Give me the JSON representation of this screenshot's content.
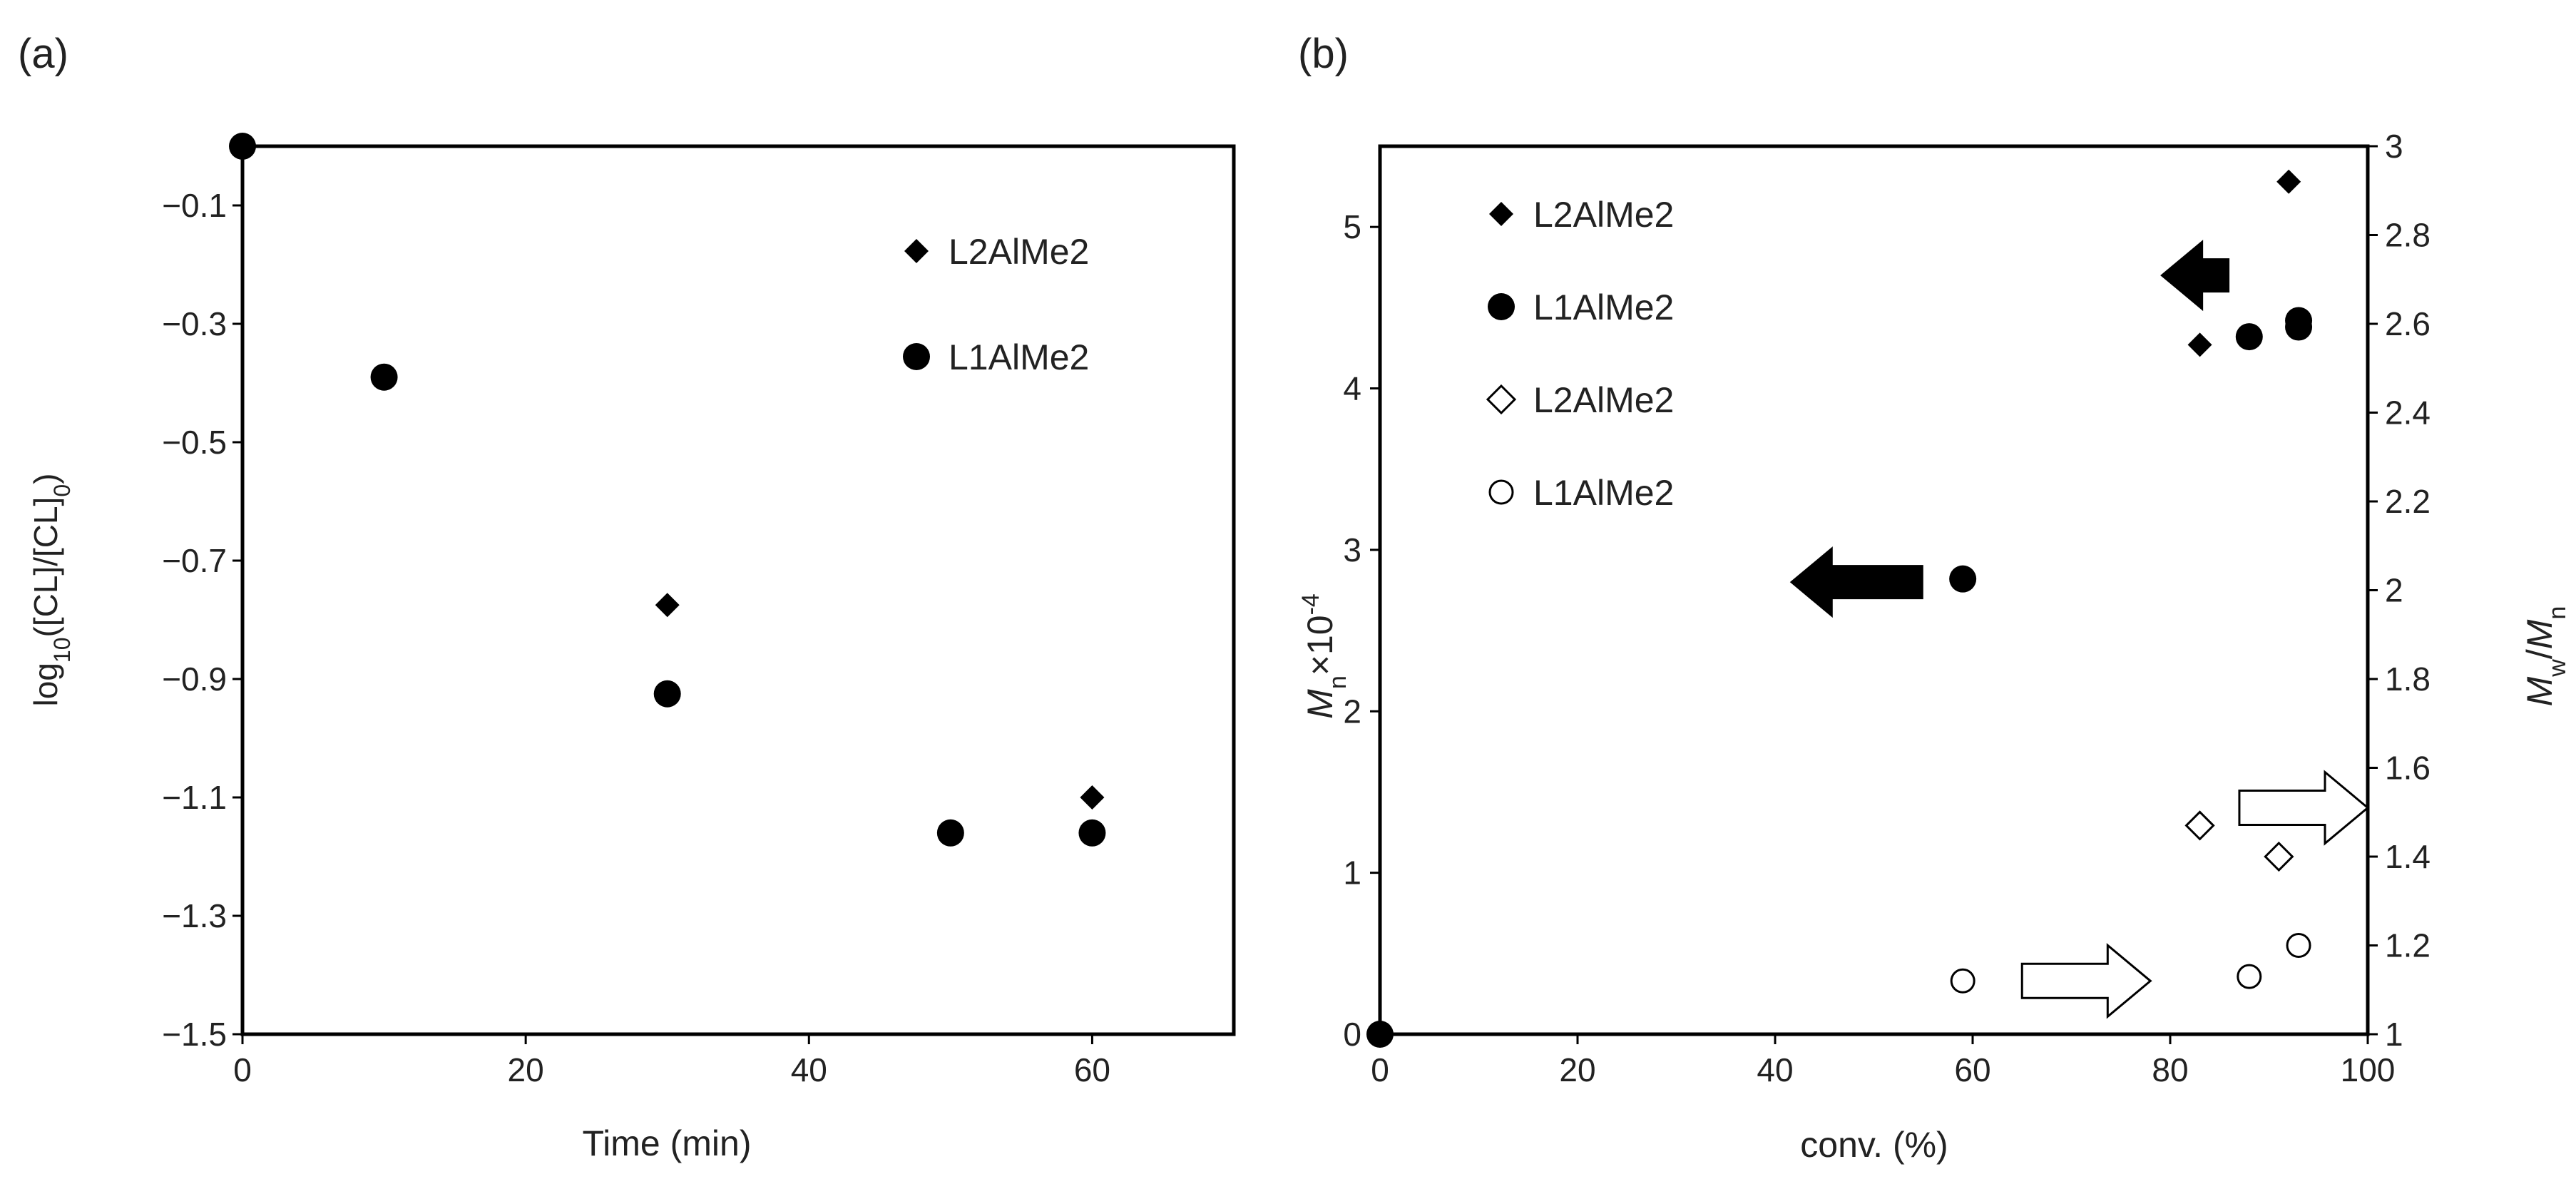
{
  "panels": {
    "a": {
      "label": "(a)"
    },
    "b": {
      "label": "(b)"
    }
  },
  "chart_data": [
    {
      "id": "a",
      "type": "scatter",
      "title": "",
      "xlabel": "Time (min)",
      "ylabel": "log10([CL]/[CL]0)",
      "ylabel_parts": {
        "pre": "log",
        "sub1": "10",
        "mid": "([CL]/[CL]",
        "sub2": "0",
        "post": ")"
      },
      "xlim": [
        0,
        70
      ],
      "ylim": [
        -1.5,
        0
      ],
      "xticks": [
        0,
        20,
        40,
        60
      ],
      "yticks": [
        -0.1,
        -0.3,
        -0.5,
        -0.7,
        -0.9,
        -1.1,
        -1.3,
        -1.5
      ],
      "grid": false,
      "legend_position": "top-right",
      "series": [
        {
          "name": "L2AlMe2",
          "marker": "filled-diamond",
          "points": [
            [
              0,
              0
            ],
            [
              30,
              -0.775
            ],
            [
              60,
              -1.1
            ]
          ]
        },
        {
          "name": "L1AlMe2",
          "marker": "filled-circle",
          "points": [
            [
              0,
              0
            ],
            [
              10,
              -0.39
            ],
            [
              30,
              -0.925
            ],
            [
              50,
              -1.16
            ],
            [
              60,
              -1.16
            ]
          ]
        }
      ]
    },
    {
      "id": "b",
      "type": "scatter",
      "title": "",
      "xlabel": "conv. (%)",
      "ylabel": "Mn×10-4",
      "ylabel_parts": {
        "main": "M",
        "sub": "n",
        "mid": "×10",
        "sup": "-4"
      },
      "y2label": "Mw/Mn",
      "y2label_parts": {
        "m1": "M",
        "s1": "w",
        "slash": "/",
        "m2": "M",
        "s2": "n"
      },
      "xlim": [
        0,
        100
      ],
      "ylim": [
        0,
        5.5
      ],
      "y2lim": [
        1,
        3
      ],
      "xticks": [
        0,
        20,
        40,
        60,
        80,
        100
      ],
      "yticks": [
        0,
        1,
        2,
        3,
        4,
        5
      ],
      "y2ticks": [
        1,
        1.2,
        1.4,
        1.6,
        1.8,
        2,
        2.2,
        2.4,
        2.6,
        2.8,
        3
      ],
      "grid": false,
      "legend_position": "top-left",
      "series": [
        {
          "name": "L2AlMe2",
          "axis": "left",
          "marker": "filled-diamond",
          "points": [
            [
              0,
              0
            ],
            [
              83,
              4.27
            ],
            [
              92,
              5.28
            ]
          ]
        },
        {
          "name": "L1AlMe2",
          "axis": "left",
          "marker": "filled-circle",
          "points": [
            [
              0,
              0
            ],
            [
              59,
              2.82
            ],
            [
              88,
              4.32
            ],
            [
              93,
              4.38
            ],
            [
              93,
              4.42
            ]
          ]
        },
        {
          "name": "L2AlMe2",
          "axis": "right",
          "marker": "open-diamond",
          "points": [
            [
              83,
              1.47
            ],
            [
              91,
              1.4
            ]
          ]
        },
        {
          "name": "L1AlMe2",
          "axis": "right",
          "marker": "open-circle",
          "points": [
            [
              59,
              1.12
            ],
            [
              88,
              1.13
            ],
            [
              93,
              1.2
            ]
          ]
        }
      ],
      "arrows": [
        {
          "fill": "black",
          "direction": "left",
          "axis": "left",
          "x_tip": 79,
          "x_tail": 86,
          "y": 4.7
        },
        {
          "fill": "black",
          "direction": "left",
          "axis": "left",
          "x_tip": 41.5,
          "x_tail": 55,
          "y": 2.8
        },
        {
          "fill": "white",
          "direction": "right",
          "axis": "right",
          "x_tip": 100,
          "x_tail": 87,
          "y": 1.51
        },
        {
          "fill": "white",
          "direction": "right",
          "axis": "right",
          "x_tip": 78,
          "x_tail": 65,
          "y": 1.12
        }
      ]
    }
  ]
}
